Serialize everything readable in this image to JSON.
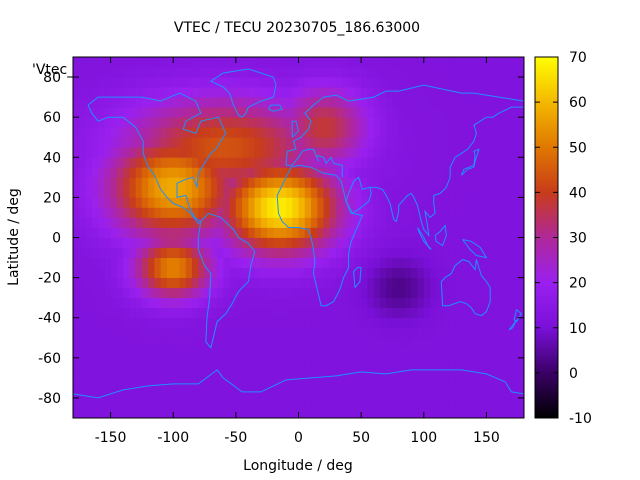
{
  "chart_data": {
    "type": "heatmap",
    "title": "VTEC / TECU 20230705_186.63000",
    "xlabel": "Longitude / deg",
    "ylabel": "Latitude / deg",
    "legend_key": "'Vtec_",
    "xlim": [
      -180,
      180
    ],
    "ylim": [
      -90,
      90
    ],
    "xticks": [
      -150,
      -100,
      -50,
      0,
      50,
      100,
      150
    ],
    "yticks": [
      -80,
      -60,
      -40,
      -20,
      0,
      20,
      40,
      60,
      80
    ],
    "colorbar": {
      "range": [
        -10,
        70
      ],
      "ticks": [
        -10,
        0,
        10,
        20,
        30,
        40,
        50,
        60,
        70
      ],
      "palette": [
        "#000000",
        "#3a0066",
        "#7a10d8",
        "#9a20f0",
        "#b02898",
        "#c83c1a",
        "#e07800",
        "#f4b800",
        "#ffff00"
      ]
    },
    "hotspots": [
      {
        "lon": -15,
        "lat": 15,
        "tec": 68,
        "spread_lon": 45,
        "spread_lat": 22
      },
      {
        "lon": -100,
        "lat": 25,
        "tec": 58,
        "spread_lon": 50,
        "spread_lat": 25
      },
      {
        "lon": -100,
        "lat": -15,
        "tec": 52,
        "spread_lon": 30,
        "spread_lat": 15
      },
      {
        "lon": -60,
        "lat": 45,
        "tec": 44,
        "spread_lon": 80,
        "spread_lat": 25
      },
      {
        "lon": 20,
        "lat": 55,
        "tec": 38,
        "spread_lon": 35,
        "spread_lat": 20
      }
    ],
    "minimum": {
      "lon": 80,
      "lat": -25,
      "tec": 3
    },
    "background_tec": 12,
    "coastline_color": "#1e90ff"
  }
}
